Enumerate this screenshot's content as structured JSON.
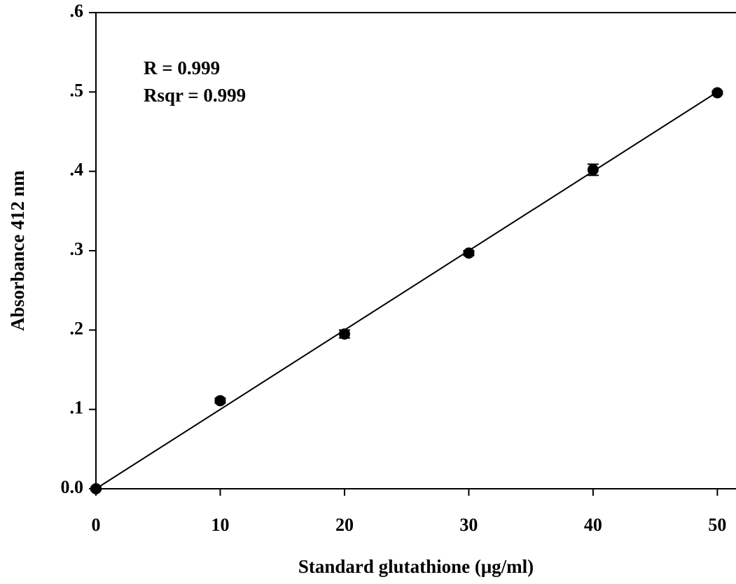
{
  "chart_data": {
    "type": "scatter",
    "xlabel": "Standard glutathione (μg/ml)",
    "ylabel": "Absorbance 412 nm",
    "annotations": [
      "R = 0.999",
      "Rsqr = 0.999"
    ],
    "x": [
      0,
      10,
      20,
      30,
      40,
      50
    ],
    "values": [
      0.0,
      0.111,
      0.195,
      0.297,
      0.402,
      0.499
    ],
    "errors": [
      0.002,
      0.003,
      0.005,
      0.003,
      0.007,
      0.002
    ],
    "color": "#000000",
    "fit_line": {
      "x": [
        0,
        50
      ],
      "values": [
        0.0,
        0.5
      ]
    },
    "xlim": [
      0,
      51.5
    ],
    "ylim": [
      0,
      0.6
    ],
    "xticks": [
      0,
      10,
      20,
      30,
      40,
      50
    ],
    "yticks": [
      {
        "value": 0,
        "label": "0.0"
      },
      {
        "value": 0.1,
        "label": ".1"
      },
      {
        "value": 0.2,
        "label": ".2"
      },
      {
        "value": 0.3,
        "label": ".3"
      },
      {
        "value": 0.4,
        "label": ".4"
      },
      {
        "value": 0.5,
        "label": ".5"
      },
      {
        "value": 0.6,
        "label": ".6"
      }
    ],
    "grid": false
  }
}
